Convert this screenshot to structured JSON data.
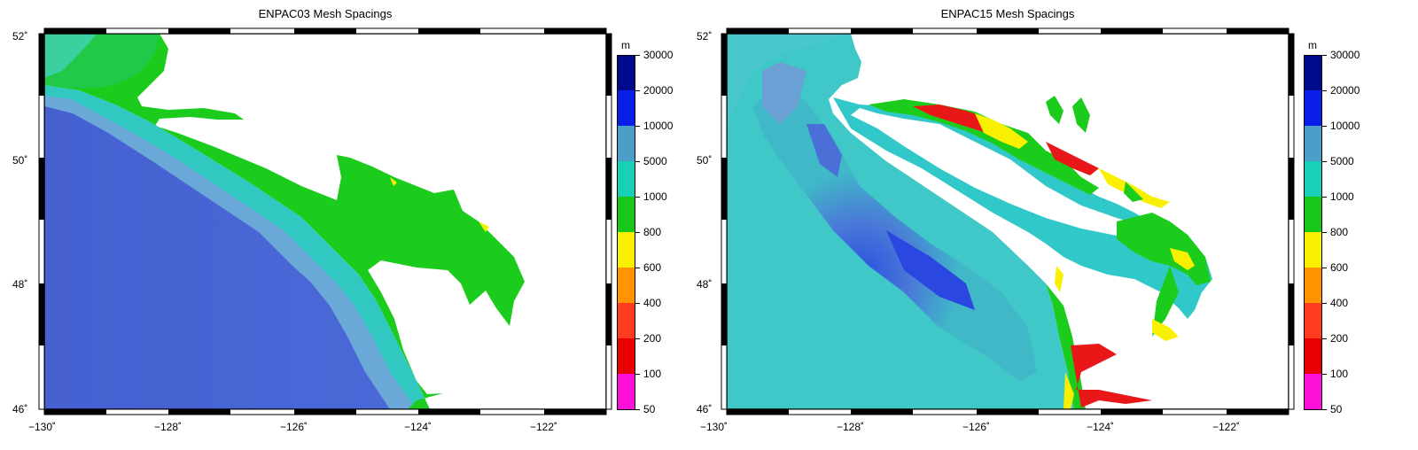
{
  "maps": [
    {
      "title": "ENPAC03 Mesh Spacings",
      "lat_labels": [
        "52˚",
        "50˚",
        "48˚",
        "46˚"
      ],
      "lon_labels": [
        "−130˚",
        "−128˚",
        "−126˚",
        "−124˚",
        "−122˚"
      ]
    },
    {
      "title": "ENPAC15 Mesh Spacings",
      "lat_labels": [
        "52˚",
        "50˚",
        "48˚",
        "46˚"
      ],
      "lon_labels": [
        "−130˚",
        "−128˚",
        "−126˚",
        "−124˚",
        "−122˚"
      ]
    }
  ],
  "colorbar": {
    "unit": "m",
    "levels": [
      "30000",
      "20000",
      "10000",
      "5000",
      "1000",
      "800",
      "600",
      "400",
      "200",
      "100",
      "50"
    ],
    "colors": [
      "#000a8c",
      "#0a1eea",
      "#4a9ec8",
      "#18d0b8",
      "#18c818",
      "#f8f000",
      "#ff9400",
      "#ff3c20",
      "#e80000",
      "#ff10d8"
    ]
  },
  "legend_semantics": "mesh spacing color scale"
}
